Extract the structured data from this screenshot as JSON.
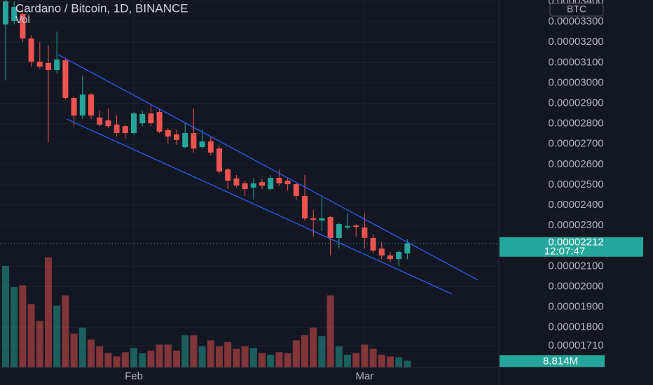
{
  "chart_data": {
    "type": "candlestick",
    "title": "Cardano / Bitcoin, 1D, BINANCE",
    "volume_title": "Vol",
    "currency": "BTC",
    "categories": [
      null,
      null,
      null,
      null,
      null,
      null,
      null,
      null,
      null,
      null,
      null,
      null,
      null,
      null,
      null,
      "Feb",
      null,
      null,
      null,
      null,
      null,
      null,
      null,
      null,
      null,
      null,
      null,
      null,
      null,
      null,
      null,
      null,
      null,
      null,
      null,
      null,
      null,
      null,
      null,
      null,
      null,
      null,
      "Mar",
      null,
      null,
      null,
      null,
      null
    ],
    "series": {
      "open": [
        3.287e-05,
        3.304e-05,
        3.338e-05,
        3.218e-05,
        3.104e-05,
        3.098e-05,
        3.063e-05,
        3.111e-05,
        2.926e-05,
        2.84e-05,
        2.943e-05,
        2.83e-05,
        2.816e-05,
        2.795e-05,
        2.788e-05,
        2.754e-05,
        2.802e-05,
        2.85e-05,
        2.857e-05,
        2.768e-05,
        2.747e-05,
        2.685e-05,
        2.754e-05,
        2.685e-05,
        2.713e-05,
        2.678e-05,
        2.575e-05,
        2.531e-05,
        2.507e-05,
        2.486e-05,
        2.513e-05,
        2.479e-05,
        2.534e-05,
        2.52e-05,
        2.503e-05,
        2.445e-05,
        2.335e-05,
        2.324e-05,
        2.342e-05,
        2.239e-05,
        2.29e-05,
        2.3e-05,
        2.29e-05,
        2.239e-05,
        2.187e-05,
        2.153e-05,
        2.135e-05,
        2.163e-05
      ],
      "high": [
        3.407e-05,
        3.4e-05,
        3.373e-05,
        3.235e-05,
        3.201e-05,
        3.184e-05,
        3.252e-05,
        3.118e-05,
        2.933e-05,
        3.036e-05,
        2.95e-05,
        2.864e-05,
        2.874e-05,
        2.84e-05,
        2.795e-05,
        2.857e-05,
        2.864e-05,
        2.891e-05,
        2.874e-05,
        2.778e-05,
        2.771e-05,
        2.806e-05,
        2.874e-05,
        2.771e-05,
        2.737e-05,
        2.692e-05,
        2.582e-05,
        2.548e-05,
        2.52e-05,
        2.531e-05,
        2.531e-05,
        2.548e-05,
        2.575e-05,
        2.531e-05,
        2.513e-05,
        2.548e-05,
        2.376e-05,
        2.438e-05,
        2.348e-05,
        2.314e-05,
        2.359e-05,
        2.307e-05,
        2.359e-05,
        2.256e-05,
        2.221e-05,
        2.17e-05,
        2.177e-05,
        2.232e-05
      ],
      "low": [
        3.012e-05,
        3.287e-05,
        3.201e-05,
        3.08e-05,
        3.07e-05,
        2.709e-05,
        3.046e-05,
        2.919e-05,
        2.788e-05,
        2.823e-05,
        2.823e-05,
        2.788e-05,
        2.778e-05,
        2.737e-05,
        2.726e-05,
        2.747e-05,
        2.788e-05,
        2.788e-05,
        2.754e-05,
        2.702e-05,
        2.696e-05,
        2.678e-05,
        2.658e-05,
        2.678e-05,
        2.644e-05,
        2.555e-05,
        2.479e-05,
        2.486e-05,
        2.445e-05,
        2.428e-05,
        2.479e-05,
        2.472e-05,
        2.493e-05,
        2.472e-05,
        2.428e-05,
        2.324e-05,
        2.245e-05,
        2.273e-05,
        2.153e-05,
        2.187e-05,
        2.28e-05,
        2.245e-05,
        2.187e-05,
        2.163e-05,
        2.135e-05,
        2.122e-05,
        2.101e-05,
        2.135e-05
      ],
      "close": [
        3.4e-05,
        3.373e-05,
        3.218e-05,
        3.104e-05,
        3.08e-05,
        3.063e-05,
        3.115e-05,
        2.926e-05,
        2.84e-05,
        2.943e-05,
        2.84e-05,
        2.795e-05,
        2.788e-05,
        2.754e-05,
        2.754e-05,
        2.85e-05,
        2.847e-05,
        2.802e-05,
        2.761e-05,
        2.737e-05,
        2.72e-05,
        2.754e-05,
        2.678e-05,
        2.713e-05,
        2.658e-05,
        2.565e-05,
        2.52e-05,
        2.496e-05,
        2.479e-05,
        2.507e-05,
        2.496e-05,
        2.534e-05,
        2.507e-05,
        2.503e-05,
        2.445e-05,
        2.335e-05,
        2.328e-05,
        2.335e-05,
        2.239e-05,
        2.307e-05,
        2.297e-05,
        2.293e-05,
        2.239e-05,
        2.177e-05,
        2.153e-05,
        2.135e-05,
        2.17e-05,
        2.212e-05
      ]
    },
    "up_color": "#26a69a",
    "down_color": "#ef5350",
    "volume": {
      "values": [
        132,
        104.5,
        106.7,
        82.5,
        60.5,
        143,
        80.3,
        93.5,
        44,
        51.7,
        36.3,
        27.5,
        18.7,
        14.3,
        19.8,
        25.3,
        18.7,
        22,
        29.7,
        29.7,
        22,
        41.8,
        41.8,
        27.5,
        35.2,
        27.5,
        33,
        24.2,
        27.5,
        25.3,
        18.7,
        16.5,
        19.8,
        18.7,
        35.2,
        41.8,
        51.7,
        40.7,
        93.5,
        27.5,
        16.5,
        18.7,
        29.7,
        24.2,
        16.5,
        14.3,
        13.2,
        8.814
      ],
      "up_color": "rgba(38,166,154,0.5)",
      "down_color": "rgba(239,83,80,0.5)",
      "vlim": [
        0,
        150
      ],
      "last": {
        "value": 8.814,
        "label": "8.814M"
      }
    },
    "ylim": [
      1.603e-05,
      3.407e-05
    ],
    "yticks": [
      {
        "value": 3.4e-05,
        "label": "0.00003400"
      },
      {
        "value": 3.3e-05,
        "label": "0.00003300"
      },
      {
        "value": 3.2e-05,
        "label": "0.00003200"
      },
      {
        "value": 3.1e-05,
        "label": "0.00003100"
      },
      {
        "value": 3e-05,
        "label": "0.00003000"
      },
      {
        "value": 2.9e-05,
        "label": "0.00002900"
      },
      {
        "value": 2.8e-05,
        "label": "0.00002800"
      },
      {
        "value": 2.7e-05,
        "label": "0.00002700"
      },
      {
        "value": 2.6e-05,
        "label": "0.00002600"
      },
      {
        "value": 2.5e-05,
        "label": "0.00002500"
      },
      {
        "value": 2.4e-05,
        "label": "0.00002400"
      },
      {
        "value": 2.3e-05,
        "label": "0.00002300"
      },
      {
        "value": 2.1e-05,
        "label": "0.00002100"
      },
      {
        "value": 2e-05,
        "label": "0.00002000"
      },
      {
        "value": 1.9e-05,
        "label": "0.00001900"
      },
      {
        "value": 1.8e-05,
        "label": "0.00001800"
      },
      {
        "value": 1.71e-05,
        "label": "0.00001710"
      }
    ],
    "grid": true,
    "last_price": {
      "value": 2.212e-05,
      "label": "0.00002212",
      "countdown": "12:07:47"
    }
  }
}
